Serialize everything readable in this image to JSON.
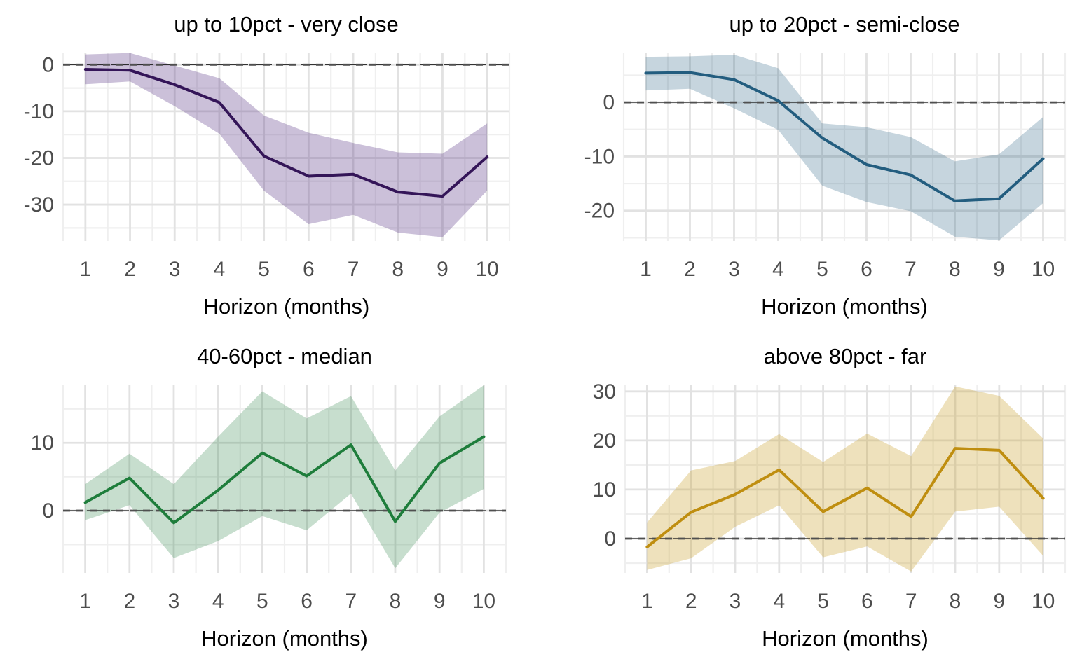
{
  "page": {
    "description": "2x2 grid of impulse-response style line charts with confidence bands",
    "background_color": "#ffffff",
    "grid_major_color": "#e2e2e2",
    "grid_minor_color": "#efefef",
    "zero_line_color": "#4f4f4f",
    "tick_label_color": "#4d4d4d",
    "title_color": "#000000"
  },
  "chart_data": [
    {
      "type": "line",
      "title": "up to 10pct - very close",
      "xlabel": "Horizon (months)",
      "ylabel": "",
      "legend": "none",
      "grid": "on",
      "zero_dashed_line": true,
      "x": [
        1,
        2,
        3,
        4,
        5,
        6,
        7,
        8,
        9,
        10
      ],
      "xticks": [
        "1",
        "2",
        "3",
        "4",
        "5",
        "6",
        "7",
        "8",
        "9",
        "10"
      ],
      "series": [
        {
          "name": "point estimate",
          "values": [
            -1.0,
            -1.2,
            -4.3,
            -8.1,
            -19.6,
            -23.9,
            -23.5,
            -27.3,
            -28.2,
            -19.8
          ]
        },
        {
          "name": "band upper",
          "values": [
            2.2,
            2.5,
            -0.2,
            -2.9,
            -10.9,
            -14.6,
            -16.8,
            -18.8,
            -19.1,
            -12.6
          ]
        },
        {
          "name": "band lower",
          "values": [
            -4.2,
            -3.6,
            -8.9,
            -14.8,
            -27.0,
            -34.2,
            -32.2,
            -36.0,
            -37.0,
            -27.0
          ]
        }
      ],
      "ylim": [
        -37.8,
        2.6
      ],
      "yticks": [
        0,
        -10,
        -20,
        -30
      ],
      "yticks_minor": [
        -5,
        -15,
        -25,
        -35
      ],
      "line_color": "#341558",
      "band_color": "rgba(84,48,128,0.30)"
    },
    {
      "type": "line",
      "title": "up to 20pct - semi-close",
      "xlabel": "Horizon (months)",
      "ylabel": "",
      "legend": "none",
      "grid": "on",
      "zero_dashed_line": true,
      "x": [
        1,
        2,
        3,
        4,
        5,
        6,
        7,
        8,
        9,
        10
      ],
      "xticks": [
        "1",
        "2",
        "3",
        "4",
        "5",
        "6",
        "7",
        "8",
        "9",
        "10"
      ],
      "series": [
        {
          "name": "point estimate",
          "values": [
            5.4,
            5.5,
            4.2,
            0.3,
            -6.6,
            -11.5,
            -13.4,
            -18.2,
            -17.8,
            -10.4
          ]
        },
        {
          "name": "band upper",
          "values": [
            8.4,
            8.5,
            8.8,
            6.3,
            -3.9,
            -4.6,
            -6.4,
            -10.9,
            -9.6,
            -2.7
          ]
        },
        {
          "name": "band lower",
          "values": [
            2.2,
            2.5,
            -1.1,
            -5.1,
            -15.4,
            -18.4,
            -20.1,
            -24.8,
            -25.5,
            -18.6
          ]
        }
      ],
      "ylim": [
        -25.6,
        9.2
      ],
      "yticks": [
        0,
        -10,
        -20
      ],
      "yticks_minor": [
        5,
        -5,
        -15,
        -25
      ],
      "line_color": "#235d7f",
      "band_color": "rgba(35,93,127,0.26)"
    },
    {
      "type": "line",
      "title": "40-60pct - median",
      "xlabel": "Horizon (months)",
      "ylabel": "",
      "legend": "none",
      "grid": "on",
      "zero_dashed_line": true,
      "x": [
        1,
        2,
        3,
        4,
        5,
        6,
        7,
        8,
        9,
        10
      ],
      "xticks": [
        "1",
        "2",
        "3",
        "4",
        "5",
        "6",
        "7",
        "8",
        "9",
        "10"
      ],
      "series": [
        {
          "name": "point estimate",
          "values": [
            1.2,
            4.8,
            -1.8,
            3.0,
            8.5,
            5.1,
            9.7,
            -1.6,
            7.0,
            10.9
          ]
        },
        {
          "name": "band upper",
          "values": [
            3.9,
            8.4,
            3.9,
            10.9,
            17.6,
            13.6,
            16.9,
            5.9,
            13.9,
            18.5
          ]
        },
        {
          "name": "band lower",
          "values": [
            -1.4,
            0.8,
            -7.0,
            -4.5,
            -0.8,
            -2.9,
            2.5,
            -8.5,
            -0.3,
            3.2
          ]
        }
      ],
      "ylim": [
        -9.2,
        18.6
      ],
      "yticks": [
        10,
        0
      ],
      "yticks_minor": [
        15,
        5,
        -5
      ],
      "line_color": "#1e7d3b",
      "band_color": "rgba(30,125,59,0.25)"
    },
    {
      "type": "line",
      "title": "above 80pct - far",
      "xlabel": "Horizon (months)",
      "ylabel": "",
      "legend": "none",
      "grid": "on",
      "zero_dashed_line": true,
      "x": [
        1,
        2,
        3,
        4,
        5,
        6,
        7,
        8,
        9,
        10
      ],
      "xticks": [
        "1",
        "2",
        "3",
        "4",
        "5",
        "6",
        "7",
        "8",
        "9",
        "10"
      ],
      "series": [
        {
          "name": "point estimate",
          "values": [
            -1.7,
            5.4,
            9.0,
            14.0,
            5.5,
            10.3,
            4.5,
            18.4,
            18.0,
            8.2
          ]
        },
        {
          "name": "band upper",
          "values": [
            3.3,
            13.9,
            15.8,
            21.3,
            15.6,
            21.4,
            16.8,
            31.0,
            29.1,
            20.4
          ]
        },
        {
          "name": "band lower",
          "values": [
            -6.4,
            -4.0,
            2.4,
            6.8,
            -3.8,
            -1.6,
            -6.7,
            5.5,
            6.5,
            -3.5
          ]
        }
      ],
      "ylim": [
        -7.0,
        31.4
      ],
      "yticks": [
        30,
        20,
        10,
        0
      ],
      "yticks_minor": [
        25,
        15,
        5,
        -5
      ],
      "line_color": "#bf8e10",
      "band_color": "rgba(199,155,34,0.30)"
    }
  ]
}
